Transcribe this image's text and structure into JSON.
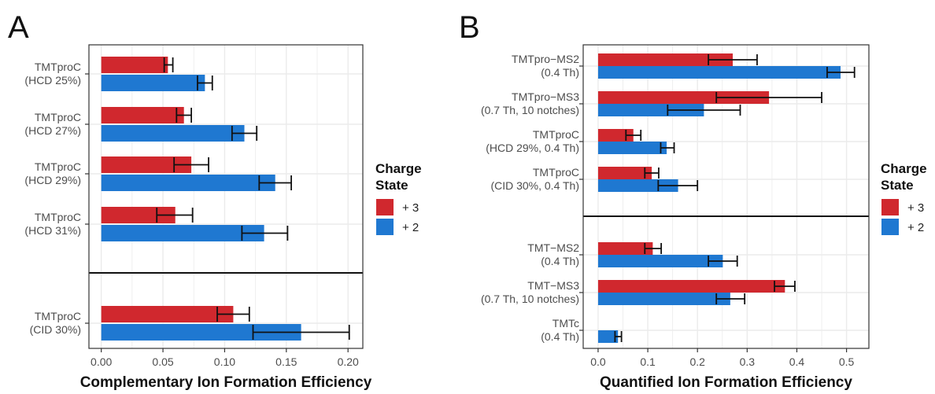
{
  "colors": {
    "series_plus3": "#d0282e",
    "series_plus2": "#1f78d1",
    "grid": "#ebebeb",
    "panel_border": "#333333"
  },
  "panels": {
    "A": {
      "letter": "A"
    },
    "B": {
      "letter": "B"
    }
  },
  "legend": {
    "title_line1": "Charge",
    "title_line2": "State",
    "items": [
      {
        "label": "+ 3",
        "color": "#d0282e"
      },
      {
        "label": "+ 2",
        "color": "#1f78d1"
      }
    ]
  },
  "chart_data": [
    {
      "type": "bar",
      "orientation": "horizontal",
      "panel": "A",
      "xlabel": "Complementary Ion Formation Efficiency",
      "xlim": [
        -0.01,
        0.212
      ],
      "xticks": [
        0.0,
        0.05,
        0.1,
        0.15,
        0.2
      ],
      "xtick_labels": [
        "0.00",
        "0.05",
        "0.10",
        "0.15",
        "0.20"
      ],
      "grid": true,
      "separator_after_group": 4,
      "groups": [
        {
          "label": [
            "TMTproC",
            "(HCD 25%)"
          ],
          "plus3": {
            "value": 0.054,
            "err": [
              0.051,
              0.058
            ]
          },
          "plus2": {
            "value": 0.084,
            "err": [
              0.078,
              0.09
            ]
          }
        },
        {
          "label": [
            "TMTproC",
            "(HCD 27%)"
          ],
          "plus3": {
            "value": 0.067,
            "err": [
              0.061,
              0.073
            ]
          },
          "plus2": {
            "value": 0.116,
            "err": [
              0.106,
              0.126
            ]
          }
        },
        {
          "label": [
            "TMTproC",
            "(HCD 29%)"
          ],
          "plus3": {
            "value": 0.073,
            "err": [
              0.059,
              0.087
            ]
          },
          "plus2": {
            "value": 0.141,
            "err": [
              0.128,
              0.154
            ]
          }
        },
        {
          "label": [
            "TMTproC",
            "(HCD 31%)"
          ],
          "plus3": {
            "value": 0.06,
            "err": [
              0.045,
              0.074
            ]
          },
          "plus2": {
            "value": 0.132,
            "err": [
              0.114,
              0.151
            ]
          }
        },
        {
          "label": [
            "TMTproC",
            "(CID 30%)"
          ],
          "plus3": {
            "value": 0.107,
            "err": [
              0.094,
              0.12
            ]
          },
          "plus2": {
            "value": 0.162,
            "err": [
              0.123,
              0.201
            ]
          }
        }
      ]
    },
    {
      "type": "bar",
      "orientation": "horizontal",
      "panel": "B",
      "xlabel": "Quantified Ion Formation Efficiency",
      "xlim": [
        -0.03,
        0.545
      ],
      "xticks": [
        0.0,
        0.1,
        0.2,
        0.3,
        0.4,
        0.5
      ],
      "xtick_labels": [
        "0.0",
        "0.1",
        "0.2",
        "0.3",
        "0.4",
        "0.5"
      ],
      "grid": true,
      "separator_after_group": 4,
      "groups": [
        {
          "label": [
            "TMTpro−MS2",
            "(0.4 Th)"
          ],
          "plus3": {
            "value": 0.271,
            "err": [
              0.222,
              0.32
            ]
          },
          "plus2": {
            "value": 0.488,
            "err": [
              0.461,
              0.516
            ]
          }
        },
        {
          "label": [
            "TMTpro−MS3",
            "(0.7 Th, 10 notches)"
          ],
          "plus3": {
            "value": 0.344,
            "err": [
              0.238,
              0.45
            ]
          },
          "plus2": {
            "value": 0.213,
            "err": [
              0.14,
              0.286
            ]
          }
        },
        {
          "label": [
            "TMTproC",
            "(HCD 29%, 0.4 Th)"
          ],
          "plus3": {
            "value": 0.071,
            "err": [
              0.056,
              0.086
            ]
          },
          "plus2": {
            "value": 0.138,
            "err": [
              0.126,
              0.153
            ]
          }
        },
        {
          "label": [
            "TMTproC",
            "(CID 30%, 0.4 Th)"
          ],
          "plus3": {
            "value": 0.108,
            "err": [
              0.094,
              0.122
            ]
          },
          "plus2": {
            "value": 0.161,
            "err": [
              0.121,
              0.2
            ]
          }
        },
        {
          "label": [
            "TMT−MS2",
            "(0.4 Th)"
          ],
          "plus3": {
            "value": 0.11,
            "err": [
              0.094,
              0.127
            ]
          },
          "plus2": {
            "value": 0.251,
            "err": [
              0.222,
              0.28
            ]
          }
        },
        {
          "label": [
            "TMT−MS3",
            "(0.7 Th, 10 notches)"
          ],
          "plus3": {
            "value": 0.376,
            "err": [
              0.355,
              0.396
            ]
          },
          "plus2": {
            "value": 0.266,
            "err": [
              0.238,
              0.295
            ]
          }
        },
        {
          "label": [
            "TMTc",
            "(0.4 Th)"
          ],
          "plus2": {
            "value": 0.04,
            "err": [
              0.034,
              0.047
            ]
          }
        }
      ]
    }
  ]
}
